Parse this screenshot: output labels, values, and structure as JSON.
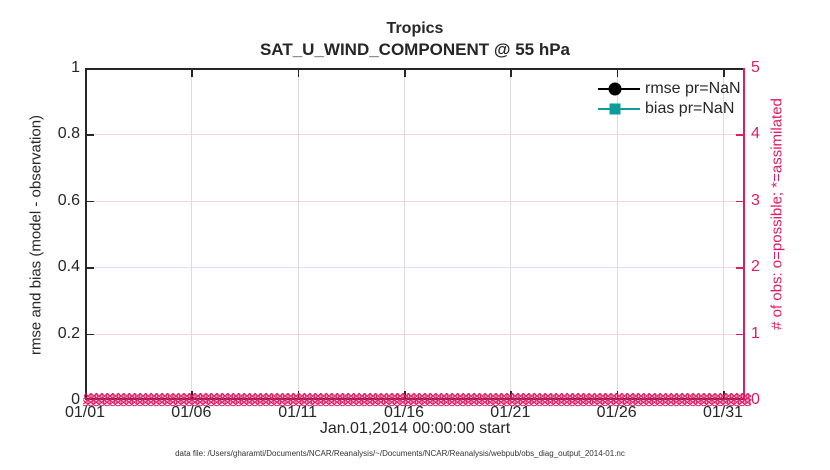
{
  "figure": {
    "title": "Tropics",
    "subtitle": "SAT_U_WIND_COMPONENT @ 55 hPa",
    "xaxis_label": "Jan.01,2014 00:00:00 start",
    "footer": "data file: /Users/gharamti/Documents/NCAR/Reanalysis/~/Documents/NCAR/Reanalysis/webpub/obs_diag_output_2014-01.nc",
    "colors": {
      "axes_dark": "#262626",
      "obs_pink": "#df1b63",
      "bias_teal": "#0d9c9c",
      "rmse_black": "#000000"
    },
    "left_axis": {
      "label": "rmse and bias (model - observation)",
      "ticks": [
        "0",
        "0.2",
        "0.4",
        "0.6",
        "0.8",
        "1"
      ]
    },
    "right_axis": {
      "label": "# of obs: o=possible; *=assimilated",
      "ticks": [
        "0",
        "1",
        "2",
        "3",
        "4",
        "5"
      ]
    },
    "x_axis": {
      "ticks": [
        "01/01",
        "01/06",
        "01/11",
        "01/16",
        "01/21",
        "01/26",
        "01/31"
      ]
    },
    "legend": [
      {
        "label": "rmse pr=NaN",
        "color": "#000000",
        "marker": "circle"
      },
      {
        "label": "bias pr=NaN",
        "color": "#0d9c9c",
        "marker": "square"
      }
    ],
    "obs_band": {
      "glyph": "⊗",
      "color": "#df1b63"
    }
  },
  "chart_data": {
    "type": "line",
    "title": "Tropics",
    "subtitle": "SAT_U_WIND_COMPONENT @ 55 hPa",
    "xlabel": "Jan.01,2014 00:00:00 start",
    "ylabel_left": "rmse and bias (model - observation)",
    "ylabel_right": "# of obs: o=possible; *=assimilated",
    "x_ticks": [
      "01/01",
      "01/06",
      "01/11",
      "01/16",
      "01/21",
      "01/26",
      "01/31"
    ],
    "ylim_left": [
      0,
      1
    ],
    "yticks_left": [
      0,
      0.2,
      0.4,
      0.6,
      0.8,
      1
    ],
    "ylim_right": [
      0,
      5
    ],
    "yticks_right": [
      0,
      1,
      2,
      3,
      4,
      5
    ],
    "grid": true,
    "legend_position": "upper right, no box",
    "series": [
      {
        "name": "rmse pr=NaN",
        "axis": "left",
        "color": "#000000",
        "marker": "circle",
        "values": null,
        "note": "all values NaN - no curve drawn"
      },
      {
        "name": "bias pr=NaN",
        "axis": "left",
        "color": "#0d9c9c",
        "marker": "square",
        "values": null,
        "note": "all values NaN - no curve drawn"
      },
      {
        "name": "# of obs possible",
        "axis": "right",
        "color": "#df1b63",
        "marker": "o",
        "constant_value": 0,
        "note": "dense markers at 0 across entire January span"
      },
      {
        "name": "# of obs assimilated",
        "axis": "right",
        "color": "#df1b63",
        "marker": "*",
        "constant_value": 0,
        "note": "dense markers at 0 across entire January span"
      }
    ]
  }
}
